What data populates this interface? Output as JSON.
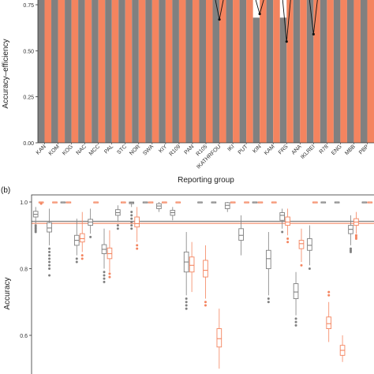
{
  "chart_data": [
    {
      "type": "bar",
      "ylabel": "Accuracy–efficiency",
      "xlabel": "Reporting group",
      "ylim": [
        0,
        0.75
      ],
      "yticks": [
        "0.00",
        "0.25",
        "0.50",
        "0.75"
      ],
      "categories": [
        "KAN",
        "KOM",
        "KOG",
        "NAC",
        "MCC",
        "PAL",
        "STC",
        "NOR",
        "SWA",
        "KIY",
        "R109",
        "PAN",
        "R105",
        "IKATHRFOU",
        "IKI",
        "PUT",
        "KIN",
        "KAM",
        "FRS",
        "ANA",
        "IKLREI",
        "R78",
        "ENG",
        "MBB",
        "PBP"
      ],
      "series": [
        {
          "color": "#808080",
          "values": [
            0.8,
            0.8,
            0.8,
            0.8,
            0.8,
            0.8,
            0.8,
            0.8,
            0.8,
            0.8,
            0.8,
            0.8,
            0.8,
            0.8,
            0.8,
            0.8,
            0.68,
            0.8,
            0.68,
            0.8,
            0.8,
            0.8,
            0.8,
            0.8,
            0.8
          ]
        },
        {
          "color": "#f4845f",
          "values": [
            0.8,
            0.8,
            0.8,
            0.8,
            0.8,
            0.8,
            0.8,
            0.8,
            0.8,
            0.8,
            0.8,
            0.8,
            0.8,
            0.8,
            0.8,
            0.8,
            0.8,
            0.8,
            0.8,
            0.8,
            0.8,
            0.8,
            0.8,
            0.8,
            0.8
          ]
        }
      ],
      "error_marks": [
        {
          "category": "IKATHRFOU",
          "value": 0.67
        },
        {
          "category": "KIN",
          "value": 0.7
        },
        {
          "category": "FRS",
          "value": 0.55
        },
        {
          "category": "IKLREI",
          "value": 0.59
        }
      ]
    },
    {
      "type": "boxplot",
      "panel_label": "(b)",
      "ylabel": "Accuracy",
      "ylim": [
        0.55,
        1.02
      ],
      "yticks": [
        "0.6",
        "0.8",
        "1.0"
      ],
      "reference_lines": [
        {
          "color": "#808080",
          "value": 0.942
        },
        {
          "color": "#f4845f",
          "value": 0.936
        }
      ],
      "boxes": [
        {
          "color": "#808080",
          "x": 0,
          "q1": 0.955,
          "median": 0.963,
          "q3": 0.972,
          "whisker_low": 0.935,
          "whisker_high": 0.985,
          "outliers": [
            0.93,
            0.925,
            0.92,
            0.915,
            0.91
          ]
        },
        {
          "color": "#f4845f",
          "x": 0,
          "q1": 1.0,
          "median": 1.0,
          "q3": 1.0,
          "whisker_low": 1.0,
          "whisker_high": 1.0,
          "outliers": [
            0.995
          ]
        },
        {
          "color": "#808080",
          "x": 1,
          "q1": 0.91,
          "median": 0.922,
          "q3": 0.938,
          "whisker_low": 0.87,
          "whisker_high": 0.98,
          "outliers": [
            0.86,
            0.85,
            0.84,
            0.83,
            0.82,
            0.81,
            0.8,
            0.78
          ]
        },
        {
          "color": "#f4845f",
          "x": 1,
          "q1": 1.0,
          "median": 1.0,
          "q3": 1.0,
          "whisker_low": 1.0,
          "whisker_high": 1.0,
          "outliers": []
        },
        {
          "color": "#808080",
          "x": 2,
          "q1": 1.0,
          "median": 1.0,
          "q3": 1.0,
          "whisker_low": 1.0,
          "whisker_high": 1.0,
          "outliers": []
        },
        {
          "color": "#f4845f",
          "x": 2,
          "q1": 1.0,
          "median": 1.0,
          "q3": 1.0,
          "whisker_low": 1.0,
          "whisker_high": 1.0,
          "outliers": []
        },
        {
          "color": "#808080",
          "x": 3,
          "q1": 0.87,
          "median": 0.885,
          "q3": 0.9,
          "whisker_low": 0.84,
          "whisker_high": 0.95,
          "outliers": [
            0.83,
            0.82
          ]
        },
        {
          "color": "#f4845f",
          "x": 3,
          "q1": 0.88,
          "median": 0.89,
          "q3": 0.905,
          "whisker_low": 0.85,
          "whisker_high": 0.97,
          "outliers": [
            0.84,
            0.83
          ]
        },
        {
          "color": "#808080",
          "x": 4,
          "q1": 0.93,
          "median": 0.94,
          "q3": 0.948,
          "whisker_low": 0.905,
          "whisker_high": 0.98,
          "outliers": [
            0.895
          ]
        },
        {
          "color": "#f4845f",
          "x": 4,
          "q1": 1.0,
          "median": 1.0,
          "q3": 1.0,
          "whisker_low": 1.0,
          "whisker_high": 1.0,
          "outliers": []
        },
        {
          "color": "#808080",
          "x": 5,
          "q1": 0.845,
          "median": 0.858,
          "q3": 0.872,
          "whisker_low": 0.8,
          "whisker_high": 0.92,
          "outliers": [
            0.79,
            0.78,
            0.77,
            0.76
          ]
        },
        {
          "color": "#f4845f",
          "x": 5,
          "q1": 0.83,
          "median": 0.845,
          "q3": 0.862,
          "whisker_low": 0.79,
          "whisker_high": 0.915,
          "outliers": [
            0.785,
            0.775
          ]
        },
        {
          "color": "#808080",
          "x": 6,
          "q1": 0.96,
          "median": 0.968,
          "q3": 0.977,
          "whisker_low": 0.94,
          "whisker_high": 0.99,
          "outliers": [
            0.93,
            0.92
          ]
        },
        {
          "color": "#f4845f",
          "x": 6,
          "q1": 1.0,
          "median": 1.0,
          "q3": 1.0,
          "whisker_low": 1.0,
          "whisker_high": 1.0,
          "outliers": []
        },
        {
          "color": "#808080",
          "x": 7,
          "q1": 0.995,
          "median": 0.998,
          "q3": 1.0,
          "whisker_low": 0.985,
          "whisker_high": 1.0,
          "outliers": [
            0.97,
            0.96,
            0.95,
            0.94,
            0.93,
            0.92
          ]
        },
        {
          "color": "#f4845f",
          "x": 7,
          "q1": 0.925,
          "median": 0.935,
          "q3": 0.955,
          "whisker_low": 0.88,
          "whisker_high": 0.985,
          "outliers": [
            0.87,
            0.86
          ]
        },
        {
          "color": "#808080",
          "x": 8,
          "q1": 1.0,
          "median": 1.0,
          "q3": 1.0,
          "whisker_low": 1.0,
          "whisker_high": 1.0,
          "outliers": []
        },
        {
          "color": "#f4845f",
          "x": 8,
          "q1": 1.0,
          "median": 1.0,
          "q3": 1.0,
          "whisker_low": 1.0,
          "whisker_high": 1.0,
          "outliers": []
        },
        {
          "color": "#808080",
          "x": 9,
          "q1": 0.98,
          "median": 0.988,
          "q3": 0.995,
          "whisker_low": 0.97,
          "whisker_high": 1.0,
          "outliers": []
        },
        {
          "color": "#f4845f",
          "x": 9,
          "q1": 1.0,
          "median": 1.0,
          "q3": 1.0,
          "whisker_low": 1.0,
          "whisker_high": 1.0,
          "outliers": []
        },
        {
          "color": "#808080",
          "x": 10,
          "q1": 0.96,
          "median": 0.968,
          "q3": 0.975,
          "whisker_low": 0.945,
          "whisker_high": 0.985,
          "outliers": []
        },
        {
          "color": "#f4845f",
          "x": 10,
          "q1": 1.0,
          "median": 1.0,
          "q3": 1.0,
          "whisker_low": 1.0,
          "whisker_high": 1.0,
          "outliers": []
        },
        {
          "color": "#808080",
          "x": 11,
          "q1": 0.79,
          "median": 0.82,
          "q3": 0.85,
          "whisker_low": 0.72,
          "whisker_high": 0.91,
          "outliers": [
            0.71,
            0.7,
            0.69,
            0.68
          ]
        },
        {
          "color": "#f4845f",
          "x": 11,
          "q1": 0.79,
          "median": 0.81,
          "q3": 0.835,
          "whisker_low": 0.73,
          "whisker_high": 0.88,
          "outliers": []
        },
        {
          "color": "#808080",
          "x": 12,
          "q1": 1.0,
          "median": 1.0,
          "q3": 1.0,
          "whisker_low": 1.0,
          "whisker_high": 1.0,
          "outliers": []
        },
        {
          "color": "#f4845f",
          "x": 12,
          "q1": 0.775,
          "median": 0.795,
          "q3": 0.825,
          "whisker_low": 0.71,
          "whisker_high": 0.87,
          "outliers": [
            0.7,
            0.69
          ]
        },
        {
          "color": "#808080",
          "x": 13,
          "q1": 1.0,
          "median": 1.0,
          "q3": 1.0,
          "whisker_low": 1.0,
          "whisker_high": 1.0,
          "outliers": []
        },
        {
          "color": "#f4845f",
          "x": 13,
          "q1": 0.565,
          "median": 0.59,
          "q3": 0.62,
          "whisker_low": 0.5,
          "whisker_high": 0.68,
          "outliers": []
        },
        {
          "color": "#808080",
          "x": 14,
          "q1": 0.98,
          "median": 0.99,
          "q3": 0.998,
          "whisker_low": 0.97,
          "whisker_high": 1.0,
          "outliers": []
        },
        {
          "color": "#f4845f",
          "x": 14,
          "q1": 1.0,
          "median": 1.0,
          "q3": 1.0,
          "whisker_low": 1.0,
          "whisker_high": 1.0,
          "outliers": []
        },
        {
          "color": "#808080",
          "x": 15,
          "q1": 0.885,
          "median": 0.9,
          "q3": 0.92,
          "whisker_low": 0.84,
          "whisker_high": 0.96,
          "outliers": []
        },
        {
          "color": "#f4845f",
          "x": 15,
          "q1": 1.0,
          "median": 1.0,
          "q3": 1.0,
          "whisker_low": 1.0,
          "whisker_high": 1.0,
          "outliers": []
        },
        {
          "color": "#808080",
          "x": 16,
          "q1": 1.0,
          "median": 1.0,
          "q3": 1.0,
          "whisker_low": 1.0,
          "whisker_high": 1.0,
          "outliers": []
        },
        {
          "color": "#f4845f",
          "x": 16,
          "q1": 1.0,
          "median": 1.0,
          "q3": 1.0,
          "whisker_low": 1.0,
          "whisker_high": 1.0,
          "outliers": []
        },
        {
          "color": "#808080",
          "x": 17,
          "q1": 0.8,
          "median": 0.83,
          "q3": 0.855,
          "whisker_low": 0.72,
          "whisker_high": 0.91,
          "outliers": [
            0.71,
            0.7
          ]
        },
        {
          "color": "#f4845f",
          "x": 17,
          "q1": 1.0,
          "median": 1.0,
          "q3": 1.0,
          "whisker_low": 1.0,
          "whisker_high": 1.0,
          "outliers": []
        },
        {
          "color": "#808080",
          "x": 18,
          "q1": 0.945,
          "median": 0.96,
          "q3": 0.968,
          "whisker_low": 0.92,
          "whisker_high": 0.98,
          "outliers": [
            0.91
          ]
        },
        {
          "color": "#f4845f",
          "x": 18,
          "q1": 0.93,
          "median": 0.94,
          "q3": 0.955,
          "whisker_low": 0.9,
          "whisker_high": 0.98,
          "outliers": [
            0.89,
            0.88
          ]
        },
        {
          "color": "#808080",
          "x": 19,
          "q1": 0.71,
          "median": 0.73,
          "q3": 0.755,
          "whisker_low": 0.66,
          "whisker_high": 0.79,
          "outliers": [
            0.65,
            0.64,
            0.63
          ]
        },
        {
          "color": "#f4845f",
          "x": 19,
          "q1": 0.86,
          "median": 0.875,
          "q3": 0.885,
          "whisker_low": 0.82,
          "whisker_high": 0.92,
          "outliers": [
            0.81
          ]
        },
        {
          "color": "#808080",
          "x": 20,
          "q1": 0.855,
          "median": 0.87,
          "q3": 0.89,
          "whisker_low": 0.81,
          "whisker_high": 0.93,
          "outliers": [
            0.8
          ]
        },
        {
          "color": "#f4845f",
          "x": 20,
          "q1": 1.0,
          "median": 1.0,
          "q3": 1.0,
          "whisker_low": 1.0,
          "whisker_high": 1.0,
          "outliers": []
        },
        {
          "color": "#808080",
          "x": 21,
          "q1": 1.0,
          "median": 1.0,
          "q3": 1.0,
          "whisker_low": 1.0,
          "whisker_high": 1.0,
          "outliers": []
        },
        {
          "color": "#f4845f",
          "x": 21,
          "q1": 0.62,
          "median": 0.635,
          "q3": 0.655,
          "whisker_low": 0.58,
          "whisker_high": 0.7,
          "outliers": [
            0.72,
            0.73
          ]
        },
        {
          "color": "#808080",
          "x": 22,
          "q1": 1.0,
          "median": 1.0,
          "q3": 1.0,
          "whisker_low": 1.0,
          "whisker_high": 1.0,
          "outliers": []
        },
        {
          "color": "#f4845f",
          "x": 22,
          "q1": 0.54,
          "median": 0.555,
          "q3": 0.57,
          "whisker_low": 0.52,
          "whisker_high": 0.6,
          "outliers": []
        },
        {
          "color": "#808080",
          "x": 23,
          "q1": 0.905,
          "median": 0.918,
          "q3": 0.93,
          "whisker_low": 0.87,
          "whisker_high": 0.96,
          "outliers": [
            0.86,
            0.855,
            0.85
          ]
        },
        {
          "color": "#f4845f",
          "x": 23,
          "q1": 0.93,
          "median": 0.94,
          "q3": 0.95,
          "whisker_low": 0.905,
          "whisker_high": 0.97,
          "outliers": [
            0.9,
            0.895,
            0.89
          ]
        },
        {
          "color": "#808080",
          "x": 24,
          "q1": 1.0,
          "median": 1.0,
          "q3": 1.0,
          "whisker_low": 1.0,
          "whisker_high": 1.0,
          "outliers": []
        },
        {
          "color": "#f4845f",
          "x": 24,
          "q1": 1.0,
          "median": 1.0,
          "q3": 1.0,
          "whisker_low": 1.0,
          "whisker_high": 1.0,
          "outliers": []
        }
      ]
    }
  ]
}
